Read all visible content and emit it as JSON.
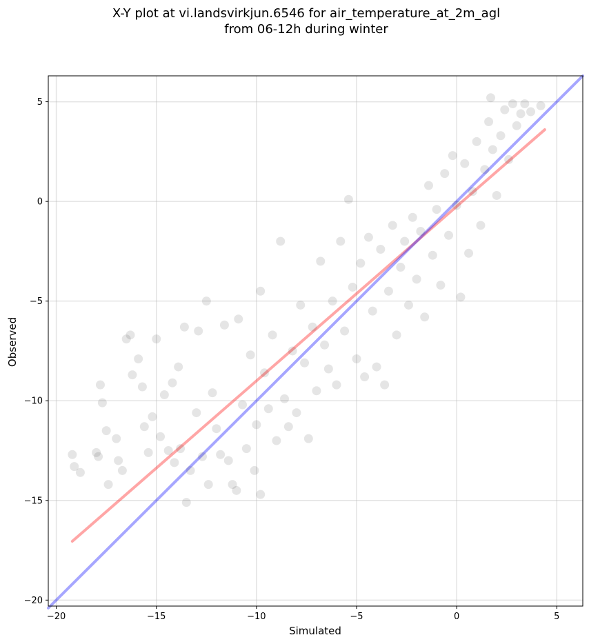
{
  "chart_data": {
    "type": "scatter",
    "title_lines": [
      "X-Y plot at vi.landsvirkjun.6546 for air_temperature_at_2m_agl",
      "from 06-12h during winter"
    ],
    "xlabel": "Simulated",
    "ylabel": "Observed",
    "xlim": [
      -20.4,
      6.3
    ],
    "ylim": [
      -20.3,
      6.3
    ],
    "x_ticks": [
      -20,
      -15,
      -10,
      -5,
      0,
      5
    ],
    "y_ticks": [
      -20,
      -15,
      -10,
      -5,
      0,
      5
    ],
    "tick_labels_x": [
      "−20",
      "−15",
      "−10",
      "−5",
      "0",
      "5"
    ],
    "tick_labels_y": [
      "−20",
      "−15",
      "−10",
      "−5",
      "0",
      "5"
    ],
    "grid": true,
    "point_color": "#000000",
    "point_alpha": 0.1,
    "series": [
      {
        "values": [
          [
            -19.2,
            -12.7
          ],
          [
            -19.1,
            -13.3
          ],
          [
            -18.8,
            -13.6
          ],
          [
            -18.0,
            -12.6
          ],
          [
            -17.9,
            -12.8
          ],
          [
            -17.8,
            -9.2
          ],
          [
            -17.7,
            -10.1
          ],
          [
            -17.5,
            -11.5
          ],
          [
            -17.4,
            -14.2
          ],
          [
            -17.0,
            -11.9
          ],
          [
            -16.9,
            -13.0
          ],
          [
            -16.7,
            -13.5
          ],
          [
            -16.5,
            -6.9
          ],
          [
            -16.3,
            -6.7
          ],
          [
            -16.2,
            -8.7
          ],
          [
            -15.9,
            -7.9
          ],
          [
            -15.7,
            -9.3
          ],
          [
            -15.6,
            -11.3
          ],
          [
            -15.4,
            -12.6
          ],
          [
            -15.2,
            -10.8
          ],
          [
            -15.0,
            -6.9
          ],
          [
            -14.8,
            -11.8
          ],
          [
            -14.6,
            -9.7
          ],
          [
            -14.4,
            -12.5
          ],
          [
            -14.2,
            -9.1
          ],
          [
            -14.1,
            -13.1
          ],
          [
            -13.9,
            -8.3
          ],
          [
            -13.8,
            -12.4
          ],
          [
            -13.6,
            -6.3
          ],
          [
            -13.5,
            -15.1
          ],
          [
            -13.3,
            -13.5
          ],
          [
            -13.0,
            -10.6
          ],
          [
            -12.9,
            -6.5
          ],
          [
            -12.7,
            -12.8
          ],
          [
            -12.5,
            -5.0
          ],
          [
            -12.4,
            -14.2
          ],
          [
            -12.2,
            -9.6
          ],
          [
            -12.0,
            -11.4
          ],
          [
            -11.8,
            -12.7
          ],
          [
            -11.6,
            -6.2
          ],
          [
            -11.4,
            -13.0
          ],
          [
            -11.2,
            -14.2
          ],
          [
            -11.0,
            -14.5
          ],
          [
            -10.9,
            -5.9
          ],
          [
            -10.7,
            -10.2
          ],
          [
            -10.5,
            -12.4
          ],
          [
            -10.3,
            -7.7
          ],
          [
            -10.1,
            -13.5
          ],
          [
            -10.0,
            -11.2
          ],
          [
            -9.8,
            -4.5
          ],
          [
            -9.8,
            -14.7
          ],
          [
            -9.6,
            -8.6
          ],
          [
            -9.4,
            -10.4
          ],
          [
            -9.2,
            -6.7
          ],
          [
            -9.0,
            -12.0
          ],
          [
            -8.8,
            -2.0
          ],
          [
            -8.6,
            -9.9
          ],
          [
            -8.4,
            -11.3
          ],
          [
            -8.2,
            -7.5
          ],
          [
            -8.0,
            -10.6
          ],
          [
            -7.8,
            -5.2
          ],
          [
            -7.6,
            -8.1
          ],
          [
            -7.4,
            -11.9
          ],
          [
            -7.2,
            -6.3
          ],
          [
            -7.0,
            -9.5
          ],
          [
            -6.8,
            -3.0
          ],
          [
            -6.6,
            -7.2
          ],
          [
            -6.4,
            -8.4
          ],
          [
            -6.2,
            -5.0
          ],
          [
            -6.0,
            -9.2
          ],
          [
            -5.8,
            -2.0
          ],
          [
            -5.6,
            -6.5
          ],
          [
            -5.4,
            0.1
          ],
          [
            -5.2,
            -4.3
          ],
          [
            -5.0,
            -7.9
          ],
          [
            -4.8,
            -3.1
          ],
          [
            -4.6,
            -8.8
          ],
          [
            -4.4,
            -1.8
          ],
          [
            -4.2,
            -5.5
          ],
          [
            -4.0,
            -8.3
          ],
          [
            -3.8,
            -2.4
          ],
          [
            -3.6,
            -9.2
          ],
          [
            -3.4,
            -4.5
          ],
          [
            -3.2,
            -1.2
          ],
          [
            -3.0,
            -6.7
          ],
          [
            -2.8,
            -3.3
          ],
          [
            -2.6,
            -2.0
          ],
          [
            -2.4,
            -5.2
          ],
          [
            -2.2,
            -0.8
          ],
          [
            -2.0,
            -3.9
          ],
          [
            -1.8,
            -1.5
          ],
          [
            -1.6,
            -5.8
          ],
          [
            -1.4,
            0.8
          ],
          [
            -1.2,
            -2.7
          ],
          [
            -1.0,
            -0.4
          ],
          [
            -0.8,
            -4.2
          ],
          [
            -0.6,
            1.4
          ],
          [
            -0.4,
            -1.7
          ],
          [
            -0.2,
            2.3
          ],
          [
            0.0,
            -0.2
          ],
          [
            0.2,
            -4.8
          ],
          [
            0.4,
            1.9
          ],
          [
            0.6,
            -2.6
          ],
          [
            0.8,
            0.5
          ],
          [
            1.0,
            3.0
          ],
          [
            1.2,
            -1.2
          ],
          [
            1.4,
            1.6
          ],
          [
            1.6,
            4.0
          ],
          [
            1.8,
            2.6
          ],
          [
            2.0,
            0.3
          ],
          [
            2.2,
            3.3
          ],
          [
            2.4,
            4.6
          ],
          [
            2.6,
            2.1
          ],
          [
            2.8,
            4.9
          ],
          [
            3.0,
            3.8
          ],
          [
            3.2,
            4.4
          ],
          [
            3.4,
            4.9
          ],
          [
            3.7,
            4.5
          ],
          [
            4.2,
            4.8
          ],
          [
            1.7,
            5.2
          ]
        ]
      }
    ],
    "lines": [
      {
        "name": "",
        "color": "#ff0000",
        "alpha": 0.35,
        "x": [
          -19.2,
          4.4
        ],
        "y": [
          -17.05,
          3.6
        ]
      },
      {
        "name": "",
        "color": "#0000ff",
        "alpha": 0.35,
        "x": [
          -20.4,
          6.3
        ],
        "y": [
          -20.4,
          6.3
        ]
      }
    ]
  }
}
